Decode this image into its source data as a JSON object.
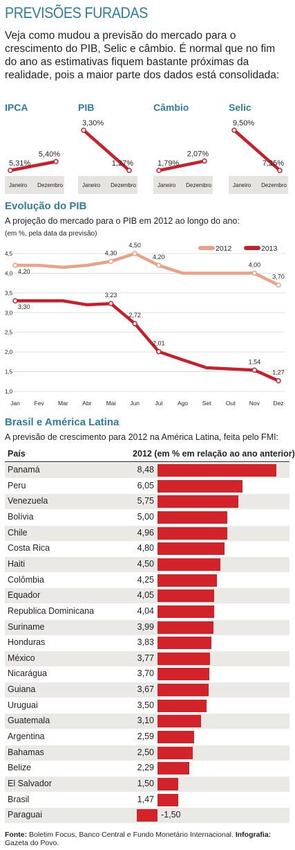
{
  "title": "PREVISÕES FURADAS",
  "intro": "Veja como mudou a previsão do mercado para o crescimento do PIB, Selic e câmbio. É normal que no fim do ano as estimativas fiquem bastante próximas da realidade, pois a maior parte dos dados está consolidada:",
  "mini_charts": [
    {
      "label": "IPCA",
      "start": "5,31%",
      "end": "5,40%",
      "start_num": 5.31,
      "end_num": 5.4,
      "x_start": "Janeiro",
      "x_end": "Dezembro"
    },
    {
      "label": "PIB",
      "start": "3,30%",
      "end": "1,27%",
      "start_num": 3.3,
      "end_num": 1.27,
      "x_start": "Janeiro",
      "x_end": "Dezembro"
    },
    {
      "label": "Câmbio",
      "start": "1,79%",
      "end": "2,07%",
      "start_num": 1.79,
      "end_num": 2.07,
      "x_start": "Janeiro",
      "x_end": "Dezembro"
    },
    {
      "label": "Selic",
      "start": "9,50%",
      "end": "7,25%",
      "start_num": 9.5,
      "end_num": 7.25,
      "x_start": "Janeiro",
      "x_end": "Dezembro"
    }
  ],
  "pib_section": {
    "title": "Evolução do PIB",
    "subtitle": "A projeção do mercado para o PIB em 2012 ao longo do ano:",
    "note": "(em %, pela data da previsão)"
  },
  "colors": {
    "series_2012": "#e8a286",
    "series_2013": "#c8202a",
    "accent": "#2f7d9e",
    "bar": "#d2232a"
  },
  "chart_data": [
    {
      "type": "line",
      "x": [
        "Jan",
        "Fev",
        "Mar",
        "Abr",
        "Mai",
        "Jun",
        "Jul",
        "Ago",
        "Set",
        "Out",
        "Nov",
        "Dez"
      ],
      "ylim": [
        1.0,
        4.5
      ],
      "yticks": [
        "1,0",
        "1,5",
        "2,0",
        "2,5",
        "3,0",
        "3,5",
        "4,0",
        "4,5"
      ],
      "ytick_values": [
        1.0,
        1.5,
        2.0,
        2.5,
        3.0,
        3.5,
        4.0,
        4.5
      ],
      "legend_position": "top-right",
      "series": [
        {
          "name": "2012",
          "values": [
            4.2,
            4.2,
            4.15,
            4.2,
            4.3,
            4.5,
            4.2,
            4.0,
            4.0,
            4.0,
            4.0,
            3.7
          ],
          "labels": {
            "0": "4,20",
            "4": "4,30",
            "5": "4,50",
            "6": "4,20",
            "10": "4,00",
            "11": "3,70"
          }
        },
        {
          "name": "2013",
          "values": [
            3.3,
            3.3,
            3.3,
            3.2,
            3.23,
            2.72,
            2.01,
            1.8,
            1.6,
            1.57,
            1.54,
            1.27
          ],
          "labels": {
            "0": "3,30",
            "4": "3,23",
            "5": "2,72",
            "6": "2,01",
            "10": "1,54",
            "11": "1,27"
          }
        }
      ]
    },
    {
      "type": "bar",
      "title": "Brasil e América Latina",
      "subtitle": "A previsão de crescimento para 2012 na América Latina, feita pelo FMI:",
      "col_country": "País",
      "col_value": "2012 (em % em relação ao ano anterior)",
      "categories": [
        "Panamá",
        "Peru",
        "Venezuela",
        "Bolívia",
        "Chile",
        "Costa Rica",
        "Haiti",
        "Colômbia",
        "Equador",
        "Republica Dominicana",
        "Suriname",
        "Honduras",
        "México",
        "Nicarágua",
        "Guiana",
        "Uruguai",
        "Guatemala",
        "Argentina",
        "Bahamas",
        "Belize",
        "El Salvador",
        "Brasil",
        "Paraguai"
      ],
      "value_labels": [
        "8,48",
        "6,05",
        "5,75",
        "5,00",
        "4,96",
        "4,80",
        "4,50",
        "4,25",
        "4,05",
        "4,04",
        "3,99",
        "3,83",
        "3,77",
        "3,70",
        "3,67",
        "3,50",
        "3,10",
        "2,59",
        "2,50",
        "2,29",
        "1,50",
        "1,47",
        "-1,50"
      ],
      "values": [
        8.48,
        6.05,
        5.75,
        5.0,
        4.96,
        4.8,
        4.5,
        4.25,
        4.05,
        4.04,
        3.99,
        3.83,
        3.77,
        3.7,
        3.67,
        3.5,
        3.1,
        2.59,
        2.5,
        2.29,
        1.5,
        1.47,
        -1.5
      ]
    }
  ],
  "footer": {
    "fonte_label": "Fonte:",
    "fonte": " Boletim Focus, Banco Central e Fundo Monetário Internacional. ",
    "infografia_label": "Infografia:",
    "infografia": " Gazeta do Povo."
  }
}
